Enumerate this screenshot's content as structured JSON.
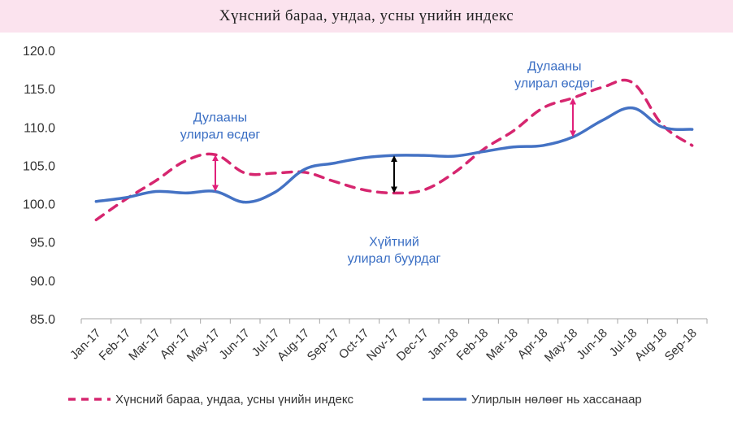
{
  "title": "Хүнсний бараа, ундаа, усны үнийн индекс",
  "colors": {
    "title_bg": "#fbe3ee",
    "series_dashed": "#d6266f",
    "series_solid": "#4472c4",
    "annotation_text": "#3b6fc4",
    "arrow_winter": "#000000",
    "arrow_summer": "#e0207a"
  },
  "chart_data": {
    "type": "line",
    "categories": [
      "Jan-17",
      "Feb-17",
      "Mar-17",
      "Apr-17",
      "May-17",
      "Jun-17",
      "Jul-17",
      "Aug-17",
      "Sep-17",
      "Oct-17",
      "Nov-17",
      "Dec-17",
      "Jan-18",
      "Feb-18",
      "Mar-18",
      "Apr-18",
      "May-18",
      "Jun-18",
      "Jul-18",
      "Aug-18",
      "Sep-18"
    ],
    "ylim": [
      85,
      120
    ],
    "yticks": [
      "85.0",
      "90.0",
      "95.0",
      "100.0",
      "105.0",
      "110.0",
      "115.0",
      "120.0"
    ],
    "series": [
      {
        "name": "Хүнсний бараа, ундаа, усны үнийн индекс",
        "style": "dashed",
        "values": [
          97.9,
          100.6,
          103.0,
          105.6,
          106.4,
          104.0,
          104.0,
          104.1,
          102.9,
          101.8,
          101.4,
          101.8,
          104.0,
          107.1,
          109.5,
          112.5,
          113.8,
          115.2,
          115.8,
          110.3,
          107.6
        ]
      },
      {
        "name": "Улирлын нөлөөг нь хассанаар",
        "style": "solid",
        "values": [
          100.3,
          100.8,
          101.6,
          101.4,
          101.6,
          100.2,
          101.5,
          104.5,
          105.3,
          106.0,
          106.3,
          106.3,
          106.2,
          106.8,
          107.4,
          107.6,
          108.7,
          110.9,
          112.5,
          110.0,
          109.7
        ]
      }
    ],
    "annotations": [
      {
        "lines": [
          "Дулааны",
          "улирал өсдөг"
        ],
        "x": "May-17",
        "y": 110.7
      },
      {
        "lines": [
          "Хүйтний",
          "улирал буурдаг"
        ],
        "x": "Nov-17",
        "y": 94.5
      },
      {
        "lines": [
          "Дулааны",
          "улирал өсдөг"
        ],
        "x": "Apr-18",
        "y": 117.4
      }
    ],
    "arrows": [
      {
        "x": "May-17",
        "y_from": 106.4,
        "y_to": 101.6,
        "color": "#e0207a"
      },
      {
        "x": "Nov-17",
        "y_from": 106.3,
        "y_to": 101.4,
        "color": "#000000"
      },
      {
        "x": "May-18",
        "y_from": 113.8,
        "y_to": 108.7,
        "color": "#e0207a"
      }
    ],
    "legend": "bottom"
  }
}
